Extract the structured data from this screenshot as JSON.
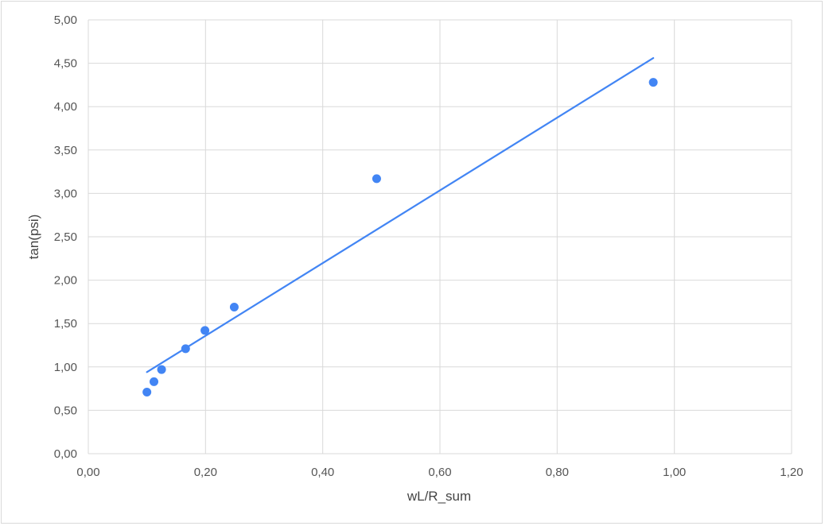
{
  "chart_data": {
    "type": "scatter",
    "title": "",
    "xlabel": "wL/R_sum",
    "ylabel": "tan(psi)",
    "xlim": [
      0,
      1.2
    ],
    "ylim": [
      0,
      5
    ],
    "x_ticks": [
      "0,00",
      "0,20",
      "0,40",
      "0,60",
      "0,80",
      "1,00",
      "1,20"
    ],
    "y_ticks": [
      "0,00",
      "0,50",
      "1,00",
      "1,50",
      "2,00",
      "2,50",
      "3,00",
      "3,50",
      "4,00",
      "4,50",
      "5,00"
    ],
    "grid": true,
    "legend": "none",
    "series": [
      {
        "points": [
          {
            "x": 0.1,
            "y": 0.71
          },
          {
            "x": 0.112,
            "y": 0.83
          },
          {
            "x": 0.125,
            "y": 0.97
          },
          {
            "x": 0.166,
            "y": 1.21
          },
          {
            "x": 0.199,
            "y": 1.42
          },
          {
            "x": 0.249,
            "y": 1.69
          },
          {
            "x": 0.492,
            "y": 3.17
          },
          {
            "x": 0.964,
            "y": 4.28
          }
        ],
        "color": "#4285f4"
      }
    ],
    "trendline": {
      "type": "linear",
      "from": {
        "x": 0.1,
        "y": 0.94
      },
      "to": {
        "x": 0.964,
        "y": 4.56
      },
      "color": "#4285f4"
    },
    "colors": {
      "grid": "#d9d9d9",
      "marker": "#4285f4",
      "text": "#555555"
    }
  }
}
